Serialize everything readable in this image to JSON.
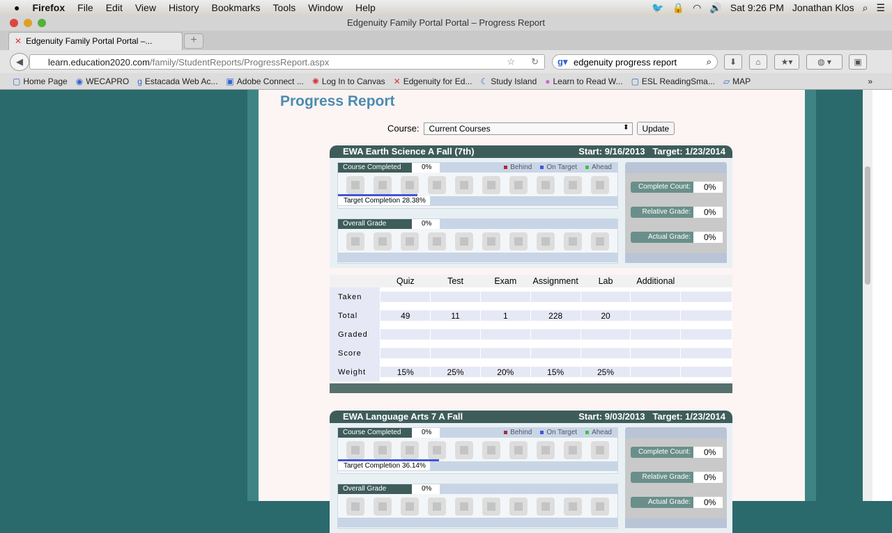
{
  "menubar": {
    "app": "Firefox",
    "items": [
      "File",
      "Edit",
      "View",
      "History",
      "Bookmarks",
      "Tools",
      "Window",
      "Help"
    ],
    "clock": "Sat 9:26 PM",
    "user": "Jonathan Klos"
  },
  "window": {
    "title": "Edgenuity Family Portal Portal – Progress Report"
  },
  "tab": {
    "label": "Edgenuity Family Portal Portal –...",
    "new": "+"
  },
  "nav": {
    "url_domain": "learn.education2020.com",
    "url_path": "/family/StudentReports/ProgressReport.aspx",
    "search": "edgenuity progress report"
  },
  "bookmarks": [
    "Home Page",
    "WECAPRO",
    "Estacada Web Ac...",
    "Adobe Connect ...",
    "Log In to Canvas",
    "Edgenuity for Ed...",
    "Study Island",
    "Learn to Read W...",
    "ESL ReadingSma...",
    "MAP"
  ],
  "page": {
    "title": "Progress Report",
    "course_label": "Course:",
    "course_value": "Current Courses",
    "update": "Update"
  },
  "colors": {
    "behind": "#b0283a",
    "on_target": "#4355d6",
    "ahead": "#3ec43e",
    "header": "#3e5d5a"
  },
  "labels": {
    "course_completed": "Course Completed",
    "overall_grade": "Overall Grade",
    "behind": "Behind",
    "on_target": "On Target",
    "ahead": "Ahead",
    "target_completion": "Target Completion",
    "complete_count": "Complete Count:",
    "relative_grade": "Relative Grade:",
    "actual_grade": "Actual Grade:"
  },
  "table": {
    "columns": [
      "",
      "Quiz",
      "Test",
      "Exam",
      "Assignment",
      "Lab",
      "Additional"
    ],
    "rows": [
      [
        "Taken",
        "",
        "",
        "",
        "",
        "",
        ""
      ],
      [
        "Total",
        "49",
        "11",
        "1",
        "228",
        "20",
        ""
      ],
      [
        "Graded",
        "",
        "",
        "",
        "",
        "",
        ""
      ],
      [
        "Score",
        "",
        "",
        "",
        "",
        "",
        ""
      ],
      [
        "Weight",
        "15%",
        "25%",
        "20%",
        "15%",
        "25%",
        ""
      ]
    ]
  },
  "courses": [
    {
      "name": "EWA Earth Science A Fall (7th)",
      "start": "Start: 9/16/2013",
      "target": "Target: 1/23/2014",
      "completed": "0%",
      "target_completion": "28.38%",
      "target_pct": 28.38,
      "overall": "0%",
      "complete_count": "0%",
      "relative_grade": "0%",
      "actual_grade": "0%"
    },
    {
      "name": "EWA Language Arts 7 A Fall",
      "start": "Start: 9/03/2013",
      "target": "Target: 1/23/2014",
      "completed": "0%",
      "target_completion": "36.14%",
      "target_pct": 36.14,
      "overall": "0%",
      "complete_count": "0%",
      "relative_grade": "0%",
      "actual_grade": "0%"
    }
  ]
}
